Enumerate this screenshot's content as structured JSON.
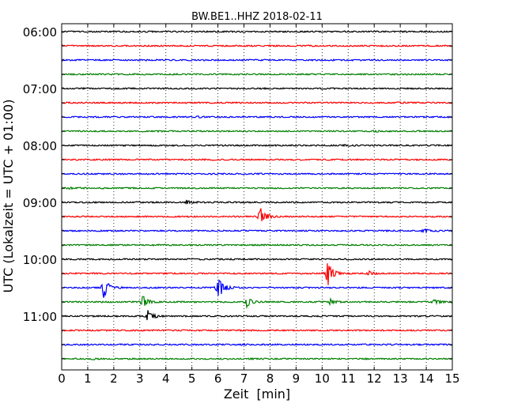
{
  "chart_data": {
    "type": "line",
    "title": "BW.BE1..HHZ 2018-02-11",
    "xlabel": "Zeit  [min]",
    "ylabel": "UTC (Lokalzeit = UTC + 01:00)",
    "xlim": [
      0,
      15
    ],
    "xticks": [
      "0",
      "1",
      "2",
      "3",
      "4",
      "5",
      "6",
      "7",
      "8",
      "9",
      "10",
      "11",
      "12",
      "13",
      "14",
      "15"
    ],
    "grid": "vertical dotted",
    "trace_colors": [
      "#000000",
      "#ff0000",
      "#0000ff",
      "#008000"
    ],
    "rows": [
      {
        "time": "06:00",
        "label": "06:00",
        "events": []
      },
      {
        "time": "06:15",
        "label": "",
        "events": []
      },
      {
        "time": "06:30",
        "label": "",
        "events": []
      },
      {
        "time": "06:45",
        "label": "",
        "events": []
      },
      {
        "time": "07:00",
        "label": "07:00",
        "events": []
      },
      {
        "time": "07:15",
        "label": "",
        "events": [
          {
            "t": 12.9,
            "amp": 0.1
          }
        ]
      },
      {
        "time": "07:30",
        "label": "",
        "events": [
          {
            "t": 5.2,
            "amp": 0.12
          }
        ]
      },
      {
        "time": "07:45",
        "label": "",
        "events": [
          {
            "t": 12.0,
            "amp": 0.08
          }
        ]
      },
      {
        "time": "08:00",
        "label": "08:00",
        "events": [
          {
            "t": 10.8,
            "amp": 0.1
          }
        ]
      },
      {
        "time": "08:15",
        "label": "",
        "events": []
      },
      {
        "time": "08:30",
        "label": "",
        "events": []
      },
      {
        "time": "08:45",
        "label": "",
        "events": [
          {
            "t": 0.3,
            "amp": 0.08
          }
        ]
      },
      {
        "time": "09:00",
        "label": "09:00",
        "events": [
          {
            "t": 4.8,
            "amp": 0.3
          }
        ]
      },
      {
        "time": "09:15",
        "label": "",
        "events": [
          {
            "t": 7.6,
            "amp": 1.6
          }
        ]
      },
      {
        "time": "09:30",
        "label": "",
        "events": [
          {
            "t": 13.9,
            "amp": 0.3
          }
        ]
      },
      {
        "time": "09:45",
        "label": "",
        "events": []
      },
      {
        "time": "10:00",
        "label": "10:00",
        "events": []
      },
      {
        "time": "10:15",
        "label": "",
        "events": [
          {
            "t": 10.2,
            "amp": 2.0
          },
          {
            "t": 11.8,
            "amp": 0.3
          }
        ]
      },
      {
        "time": "10:30",
        "label": "",
        "events": [
          {
            "t": 1.6,
            "amp": 1.5
          },
          {
            "t": 6.0,
            "amp": 1.8
          }
        ]
      },
      {
        "time": "10:45",
        "label": "",
        "events": [
          {
            "t": 3.1,
            "amp": 0.9
          },
          {
            "t": 7.1,
            "amp": 0.7
          },
          {
            "t": 10.3,
            "amp": 0.4
          },
          {
            "t": 14.3,
            "amp": 0.4
          }
        ]
      },
      {
        "time": "11:00",
        "label": "11:00",
        "events": [
          {
            "t": 3.3,
            "amp": 0.9
          }
        ]
      },
      {
        "time": "11:15",
        "label": "",
        "events": []
      },
      {
        "time": "11:30",
        "label": "",
        "events": [
          {
            "t": 7.0,
            "amp": 0.08
          }
        ]
      },
      {
        "time": "11:45",
        "label": "",
        "events": [
          {
            "t": 1.2,
            "amp": 0.08
          }
        ]
      }
    ]
  }
}
